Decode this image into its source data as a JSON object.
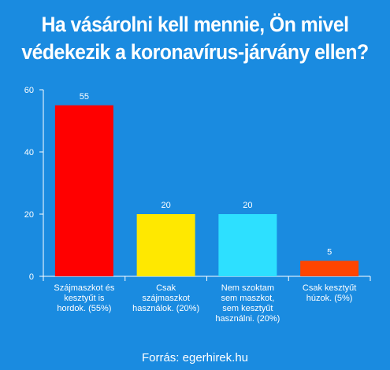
{
  "title": {
    "line1": "Ha vásárolni kell mennie, Ön mivel",
    "line2": "védekezik a koronavírus-járvány ellen?"
  },
  "source": "Forrás: egerhirek.hu",
  "colors": {
    "background": "#1a8be0",
    "bars": [
      "#ff0000",
      "#ffe800",
      "#2de0ff",
      "#ff4500"
    ]
  },
  "chart_data": {
    "type": "bar",
    "categories": [
      [
        "Szájmaszkot és",
        "kesztyűt is",
        "hordok. (55%)"
      ],
      [
        "Csak",
        "szájmaszkot",
        "használok. (20%)"
      ],
      [
        "Nem szoktam",
        "sem maszkot,",
        "sem kesztyűt",
        "használni. (20%)"
      ],
      [
        "Csak kesztyűt",
        "húzok. (5%)"
      ]
    ],
    "values": [
      55,
      20,
      20,
      5
    ],
    "data_labels": [
      "55",
      "20",
      "20",
      "5"
    ],
    "y_ticks": [
      0,
      20,
      40,
      60
    ],
    "ylim": [
      0,
      60
    ],
    "grid": false
  }
}
